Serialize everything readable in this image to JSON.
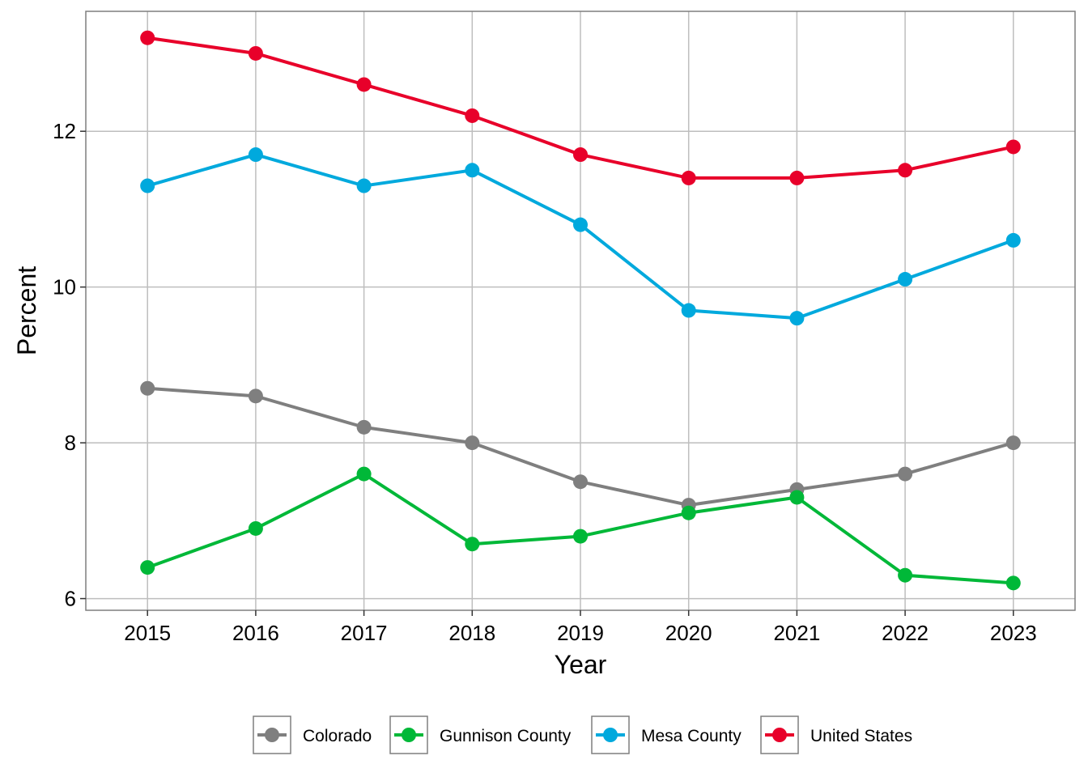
{
  "chart_data": {
    "type": "line",
    "title": "",
    "xlabel": "Year",
    "ylabel": "Percent",
    "x": [
      2015,
      2016,
      2017,
      2018,
      2019,
      2020,
      2021,
      2022,
      2023
    ],
    "x_tick_labels": [
      "2015",
      "2016",
      "2017",
      "2018",
      "2019",
      "2020",
      "2021",
      "2022",
      "2023"
    ],
    "y_ticks": [
      6,
      8,
      10,
      12
    ],
    "y_tick_labels": [
      "6",
      "8",
      "10",
      "12"
    ],
    "ylim": [
      5.85,
      13.54
    ],
    "xlim": [
      2014.43,
      2023.57
    ],
    "grid": true,
    "legend_position": "bottom",
    "series": [
      {
        "name": "Colorado",
        "color": "#7f7f7f",
        "values": [
          8.7,
          8.6,
          8.2,
          8.0,
          7.5,
          7.2,
          7.4,
          7.6,
          8.0
        ]
      },
      {
        "name": "Gunnison County",
        "color": "#00b838",
        "values": [
          6.4,
          6.9,
          7.6,
          6.7,
          6.8,
          7.1,
          7.3,
          6.3,
          6.2
        ]
      },
      {
        "name": "Mesa County",
        "color": "#00a9dd",
        "values": [
          11.3,
          11.7,
          11.3,
          11.5,
          10.8,
          9.7,
          9.6,
          10.1,
          10.6
        ]
      },
      {
        "name": "United States",
        "color": "#e8002a",
        "values": [
          13.2,
          13.0,
          12.6,
          12.2,
          11.7,
          11.4,
          11.4,
          11.5,
          11.8
        ]
      }
    ]
  }
}
